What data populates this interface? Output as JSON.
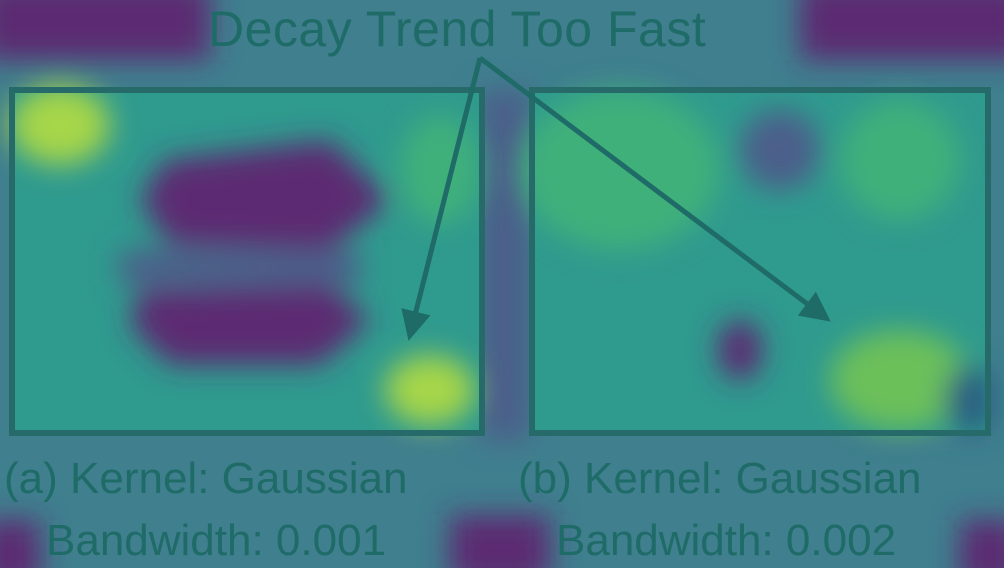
{
  "figure": {
    "title": "Decay Trend Too Fast",
    "panels": [
      {
        "id": "a",
        "caption_line1": "(a) Kernel: Gaussian",
        "caption_line2": "Bandwidth: 0.001"
      },
      {
        "id": "b",
        "caption_line1": "(b) Kernel: Gaussian",
        "caption_line2": "Bandwidth: 0.002"
      }
    ]
  },
  "colors": {
    "background": "#3f7f8e",
    "purple": "#5c2a72",
    "teal": "#2f9a8e",
    "green": "#3fb07a",
    "yellow_green": "#a6d64a",
    "text_and_arrow": "#1f6b68"
  }
}
